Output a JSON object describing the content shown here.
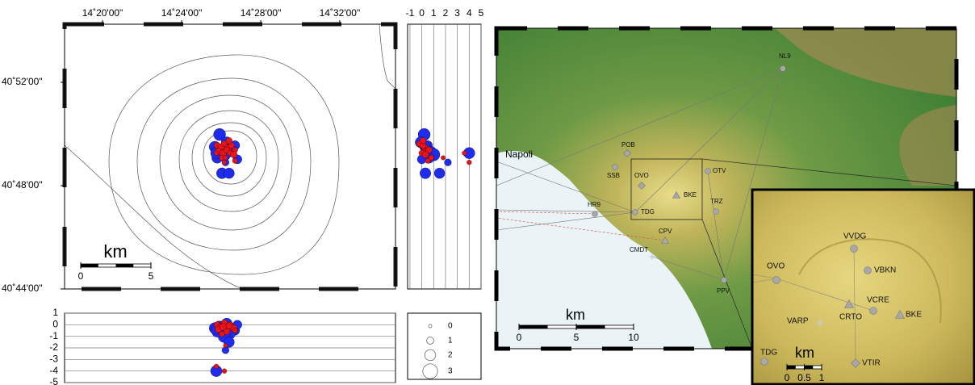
{
  "location_map": {
    "lonlim": [
      14.3013,
      14.5803
    ],
    "latlim": [
      40.7333,
      40.9042
    ],
    "lon_ticks": [
      {
        "value": 14.3333,
        "label": "14˚20'00\""
      },
      {
        "value": 14.4,
        "label": "14˚24'00\""
      },
      {
        "value": 14.4667,
        "label": "14˚28'00\""
      },
      {
        "value": 14.5333,
        "label": "14˚32'00\""
      }
    ],
    "lat_ticks": [
      {
        "value": 40.8667,
        "label": "40˚52'00\""
      },
      {
        "value": 40.8,
        "label": "40˚48'00\""
      },
      {
        "value": 40.7333,
        "label": "40˚44'00\""
      }
    ],
    "scale_bar": {
      "unit": "km",
      "ticks": [
        0,
        5
      ]
    }
  },
  "depth_section": {
    "depth_lim": [
      -1.2,
      5
    ],
    "depth_ticks": [
      -1,
      0,
      1,
      2,
      3,
      4,
      5
    ]
  },
  "elevation_section": {
    "elev_lim": [
      1,
      -5
    ],
    "elev_ticks": [
      1,
      0,
      -1,
      -2,
      -3,
      -4,
      -5
    ]
  },
  "magnitude_legend": {
    "magnitudes": [
      0,
      1,
      2,
      3
    ]
  },
  "events": [
    {
      "color": "#1f2cf0",
      "lon": [
        14.432,
        14.438,
        14.445,
        14.428,
        14.441,
        14.436,
        14.43,
        14.447,
        14.434,
        14.44,
        14.429,
        14.437,
        14.4292
      ],
      "lat": [
        40.833,
        40.828,
        40.826,
        40.825,
        40.822,
        40.82,
        40.818,
        40.817,
        40.808,
        40.808,
        40.822,
        40.815,
        40.821
      ],
      "depth": [
        0.2,
        -0.1,
        0.5,
        0.3,
        0.8,
        1.0,
        0.6,
        0.0,
        0.3,
        1.5,
        0.4,
        2.2,
        4.0
      ],
      "mag": [
        2.3,
        2.0,
        1.6,
        2.1,
        1.8,
        2.4,
        2.0,
        1.5,
        2.0,
        1.9,
        1.7,
        1.0,
        2.1
      ]
    },
    {
      "color": "#e8141c",
      "lon": [
        14.43,
        14.433,
        14.436,
        14.439,
        14.442,
        14.445,
        14.431,
        14.435,
        14.438,
        14.441,
        14.444,
        14.434,
        14.437,
        14.44,
        14.4292,
        14.445,
        14.436
      ],
      "lat": [
        40.826,
        40.825,
        40.827,
        40.824,
        40.826,
        40.823,
        40.822,
        40.821,
        40.823,
        40.821,
        40.82,
        40.818,
        40.818,
        40.829,
        40.821,
        40.816,
        40.815
      ],
      "depth": [
        0.0,
        0.2,
        -0.2,
        0.3,
        0.1,
        0.5,
        0.4,
        0.2,
        0.6,
        0.0,
        0.3,
        0.8,
        1.8,
        0.1,
        3.6,
        0.5,
        4.0
      ],
      "mag": [
        0.8,
        0.9,
        0.7,
        1.0,
        0.8,
        0.6,
        0.9,
        1.0,
        0.8,
        0.7,
        0.9,
        0.6,
        0.3,
        0.8,
        0.4,
        0.5,
        0.4
      ]
    }
  ],
  "network_map": {
    "city": "Napoli",
    "stations": [
      "NL9",
      "POB",
      "SSB",
      "OVO",
      "OTV",
      "HR9",
      "TDG",
      "BKE",
      "TRZ",
      "CPV",
      "CMDT",
      "PPV"
    ],
    "scale_bar": {
      "unit": "km",
      "ticks": [
        0,
        5,
        10
      ]
    }
  },
  "inset_map": {
    "stations": [
      "VVDG",
      "VBKN",
      "OVO",
      "CRTO",
      "VCRE",
      "BKE",
      "VARP",
      "TDG",
      "VTIR"
    ],
    "scale_bar": {
      "unit": "km",
      "ticks": [
        0,
        0.5,
        1
      ]
    }
  }
}
